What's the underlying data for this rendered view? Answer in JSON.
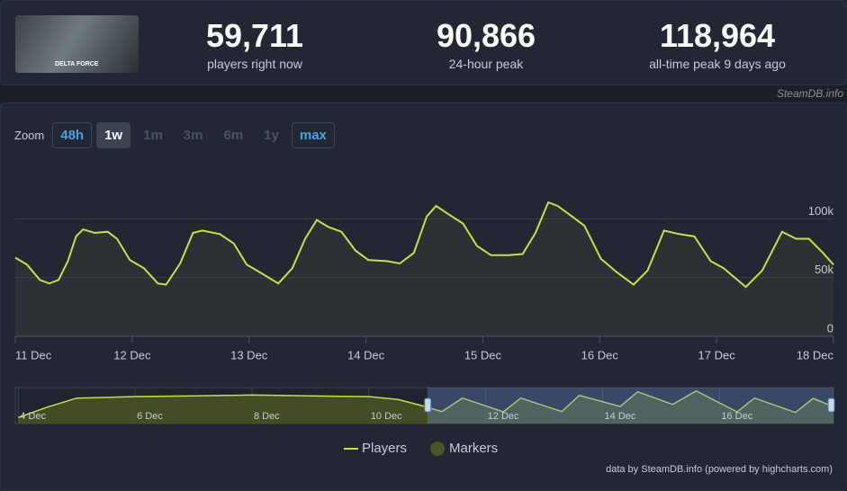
{
  "header": {
    "logo_text": "DELTA FORCE",
    "stats": [
      {
        "value": "59,711",
        "label": "players right now"
      },
      {
        "value": "90,866",
        "label": "24-hour peak"
      },
      {
        "value": "118,964",
        "label": "all-time peak 9 days ago"
      }
    ],
    "source": "SteamDB.info"
  },
  "zoom": {
    "label": "Zoom",
    "options": [
      {
        "label": "48h",
        "state": "enabled"
      },
      {
        "label": "1w",
        "state": "selected"
      },
      {
        "label": "1m",
        "state": "disabled"
      },
      {
        "label": "3m",
        "state": "disabled"
      },
      {
        "label": "6m",
        "state": "disabled"
      },
      {
        "label": "1y",
        "state": "disabled"
      },
      {
        "label": "max",
        "state": "enabled"
      }
    ]
  },
  "chart_data": {
    "type": "line",
    "x": [
      11.0,
      11.1,
      11.21,
      11.29,
      11.37,
      11.45,
      11.52,
      11.58,
      11.68,
      11.79,
      11.87,
      11.98,
      12.1,
      12.22,
      12.29,
      12.41,
      12.52,
      12.6,
      12.75,
      12.87,
      12.98,
      13.1,
      13.25,
      13.37,
      13.48,
      13.58,
      13.68,
      13.79,
      13.91,
      14.02,
      14.18,
      14.29,
      14.41,
      14.52,
      14.6,
      14.72,
      14.83,
      14.95,
      15.07,
      15.22,
      15.34,
      15.45,
      15.56,
      15.64,
      15.75,
      15.87,
      16.01,
      16.14,
      16.29,
      16.41,
      16.55,
      16.68,
      16.81,
      16.95,
      17.06,
      17.25,
      17.39,
      17.56,
      17.68,
      17.79,
      17.91,
      18.0
    ],
    "series": [
      {
        "name": "Players",
        "color": "#c3e43f",
        "values": [
          67000,
          61000,
          48000,
          45000,
          48000,
          64000,
          85000,
          91000,
          88000,
          89000,
          83000,
          65000,
          58000,
          45000,
          44000,
          62000,
          88000,
          90000,
          87000,
          79000,
          61000,
          54000,
          45000,
          58000,
          83000,
          99000,
          93000,
          89000,
          73000,
          65000,
          64000,
          62000,
          71000,
          102000,
          111000,
          103000,
          96000,
          77000,
          69000,
          69000,
          70000,
          88000,
          114000,
          111000,
          103000,
          94000,
          66000,
          55000,
          44000,
          56000,
          90000,
          87000,
          85000,
          64000,
          58000,
          42000,
          56000,
          89000,
          83000,
          83000,
          71000,
          61000
        ]
      }
    ],
    "markers": {
      "name": "Markers",
      "color": "#4a5424"
    },
    "xlim": [
      11,
      18
    ],
    "xticks": [
      {
        "value": 11,
        "label": "11 Dec"
      },
      {
        "value": 12,
        "label": "12 Dec"
      },
      {
        "value": 13,
        "label": "13 Dec"
      },
      {
        "value": 14,
        "label": "14 Dec"
      },
      {
        "value": 15,
        "label": "15 Dec"
      },
      {
        "value": 16,
        "label": "16 Dec"
      },
      {
        "value": 17,
        "label": "17 Dec"
      },
      {
        "value": 18,
        "label": "18 Dec"
      }
    ],
    "ylim": [
      0,
      150000
    ],
    "yticks": [
      0,
      {
        "value": 50000,
        "label": "50k"
      },
      {
        "value": 100000,
        "label": "100k"
      }
    ],
    "grid": true,
    "navigator": {
      "x": [
        4,
        4.5,
        5,
        6,
        7,
        8,
        9,
        10,
        10.5,
        10.9,
        11.25,
        11.6,
        12.3,
        12.6,
        13.3,
        13.6,
        14.3,
        14.6,
        15.2,
        15.6,
        16.3,
        16.6,
        17.3,
        17.6,
        17.95
      ],
      "values": [
        20000,
        55000,
        85000,
        90000,
        92000,
        95000,
        92000,
        90000,
        80000,
        60000,
        40000,
        85000,
        39000,
        85000,
        40000,
        94000,
        57000,
        106000,
        64000,
        109000,
        39000,
        85000,
        37000,
        84000,
        56000
      ],
      "xlim": [
        3.95,
        17.95
      ],
      "xticks": [
        {
          "value": 4,
          "label": "4 Dec"
        },
        {
          "value": 6,
          "label": "6 Dec"
        },
        {
          "value": 8,
          "label": "8 Dec"
        },
        {
          "value": 10,
          "label": "10 Dec"
        },
        {
          "value": 12,
          "label": "12 Dec"
        },
        {
          "value": 14,
          "label": "14 Dec"
        },
        {
          "value": 16,
          "label": "16 Dec"
        }
      ],
      "ylim": [
        0,
        120000
      ]
    }
  },
  "credits": "data by SteamDB.info (powered by highcharts.com)"
}
